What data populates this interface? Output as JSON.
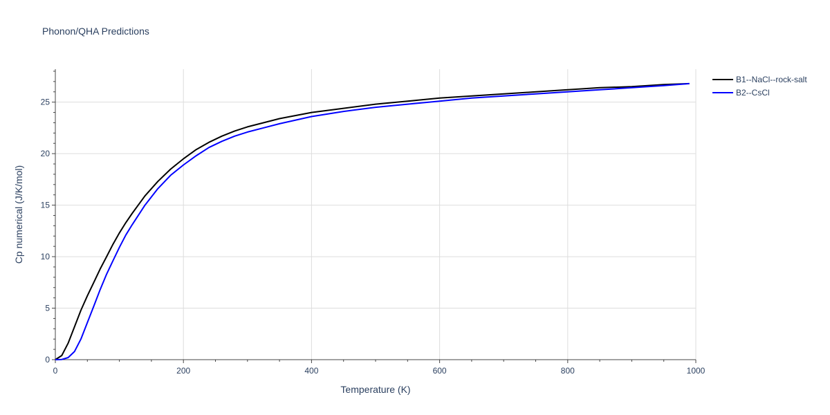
{
  "chart_data": {
    "type": "line",
    "title": "Phonon/QHA Predictions",
    "xlabel": "Temperature (K)",
    "ylabel": "Cp numerical (J/K/mol)",
    "xlim": [
      0,
      1000
    ],
    "ylim": [
      0,
      28.2
    ],
    "x_ticks": [
      0,
      200,
      400,
      600,
      800,
      1000
    ],
    "y_ticks": [
      0,
      5,
      10,
      15,
      20,
      25
    ],
    "x_tick_labels": [
      "0",
      "200",
      "400",
      "600",
      "800",
      "1000"
    ],
    "y_tick_labels": [
      "0",
      "5",
      "10",
      "15",
      "20",
      "25"
    ],
    "grid": true,
    "legend_position": "top-right outside",
    "series": [
      {
        "name": "B1--NaCl--rock-salt",
        "color": "#000000",
        "x": [
          0,
          10,
          20,
          30,
          40,
          50,
          60,
          70,
          80,
          90,
          100,
          110,
          120,
          140,
          160,
          180,
          200,
          220,
          240,
          260,
          280,
          300,
          350,
          400,
          450,
          500,
          550,
          600,
          650,
          700,
          750,
          800,
          850,
          900,
          950,
          990
        ],
        "y": [
          0,
          0.4,
          1.6,
          3.2,
          4.8,
          6.2,
          7.5,
          8.8,
          10.0,
          11.2,
          12.3,
          13.3,
          14.2,
          15.9,
          17.3,
          18.5,
          19.5,
          20.4,
          21.1,
          21.7,
          22.2,
          22.6,
          23.4,
          24.0,
          24.4,
          24.8,
          25.1,
          25.4,
          25.6,
          25.8,
          26.0,
          26.2,
          26.4,
          26.5,
          26.7,
          26.8
        ]
      },
      {
        "name": "B2--CsCl",
        "color": "#0000ff",
        "x": [
          0,
          10,
          20,
          30,
          40,
          50,
          60,
          70,
          80,
          90,
          100,
          110,
          120,
          140,
          160,
          180,
          200,
          220,
          240,
          260,
          280,
          300,
          350,
          400,
          450,
          500,
          550,
          600,
          650,
          700,
          750,
          800,
          850,
          900,
          950,
          990
        ],
        "y": [
          0,
          0.02,
          0.2,
          0.8,
          2.0,
          3.6,
          5.2,
          6.8,
          8.3,
          9.6,
          10.9,
          12.1,
          13.1,
          15.0,
          16.6,
          17.9,
          18.9,
          19.8,
          20.6,
          21.2,
          21.7,
          22.1,
          22.9,
          23.6,
          24.1,
          24.5,
          24.8,
          25.1,
          25.4,
          25.6,
          25.8,
          26.0,
          26.2,
          26.4,
          26.6,
          26.8
        ]
      }
    ]
  }
}
